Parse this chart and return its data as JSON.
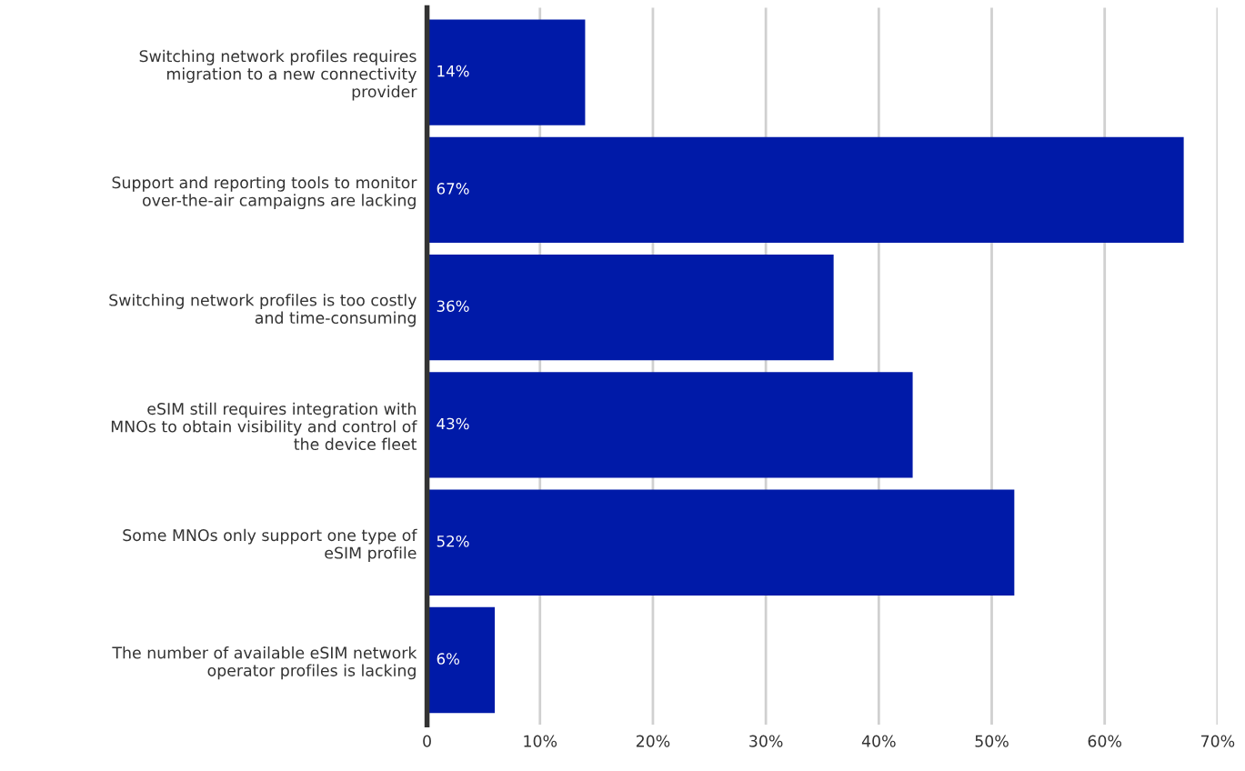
{
  "chart_data": {
    "type": "bar",
    "orientation": "horizontal",
    "categories": [
      "Switching network profiles requires\nmigration to a new connectivity\nprovider",
      "Support and reporting tools to monitor\nover-the-air campaigns are lacking",
      "Switching network profiles is too costly\nand time-consuming",
      "eSIM still requires integration with\nMNOs to obtain visibility and control of\nthe device fleet",
      "Some MNOs only support one type of\neSIM profile",
      "The number of available eSIM network\noperator profiles is lacking"
    ],
    "values": [
      14,
      67,
      36,
      43,
      52,
      6
    ],
    "value_labels": [
      "14%",
      "67%",
      "36%",
      "43%",
      "52%",
      "6%"
    ],
    "color": "#001aa8",
    "xlim": [
      0,
      70
    ],
    "xticks": [
      0,
      {
        "value": 10,
        "label": "10%"
      },
      {
        "value": 20,
        "label": "20%"
      },
      {
        "value": 30,
        "label": "30%"
      },
      {
        "value": 40,
        "label": "40%"
      },
      {
        "value": 50,
        "label": "50%"
      },
      {
        "value": 60,
        "label": "60%"
      },
      {
        "value": 70,
        "label": "70%"
      }
    ],
    "grid": "x"
  }
}
